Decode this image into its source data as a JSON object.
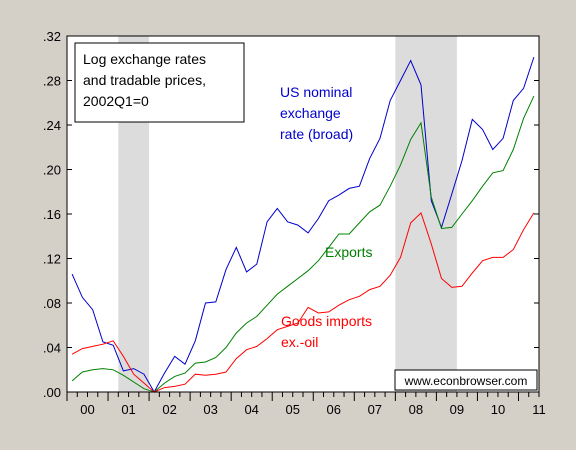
{
  "chart_data": {
    "type": "line",
    "title": "Log exchange rates and tradable prices, 2002Q1=0",
    "title_lines": [
      "Log exchange rates",
      "and tradable prices,",
      "2002Q1=0"
    ],
    "x_start": "2000Q1",
    "x_end": "2011Q1",
    "x_tick_labels": [
      "00",
      "01",
      "02",
      "03",
      "04",
      "05",
      "06",
      "07",
      "08",
      "09",
      "10",
      "11"
    ],
    "y_tick_labels": [
      ".00",
      ".04",
      ".08",
      ".12",
      ".16",
      ".20",
      ".24",
      ".28",
      ".32"
    ],
    "ylim": [
      0,
      0.32
    ],
    "recessions": [
      {
        "start": "2001Q2",
        "end": "2001Q4"
      },
      {
        "start": "2008Q1",
        "end": "2009Q2"
      }
    ],
    "grid": false,
    "legend": "inline labels",
    "series": [
      {
        "name": "US nominal exchange rate (broad)",
        "label_lines": [
          "US nominal",
          "exchange",
          "rate (broad)"
        ],
        "color": "#0000cc",
        "values": [
          0.106,
          0.085,
          0.074,
          0.045,
          0.042,
          0.019,
          0.021,
          0.016,
          0.0,
          0.017,
          0.032,
          0.025,
          0.046,
          0.08,
          0.081,
          0.11,
          0.13,
          0.108,
          0.115,
          0.153,
          0.165,
          0.153,
          0.15,
          0.143,
          0.156,
          0.172,
          0.177,
          0.183,
          0.185,
          0.21,
          0.228,
          0.262,
          0.28,
          0.298,
          0.276,
          0.172,
          0.148,
          0.178,
          0.208,
          0.245,
          0.236,
          0.218,
          0.228,
          0.262,
          0.273,
          0.301
        ]
      },
      {
        "name": "Exports",
        "label_lines": [
          "Exports"
        ],
        "color": "#008000",
        "values": [
          0.01,
          0.018,
          0.02,
          0.021,
          0.02,
          0.015,
          0.009,
          0.003,
          0.0,
          0.008,
          0.014,
          0.017,
          0.026,
          0.027,
          0.031,
          0.04,
          0.053,
          0.062,
          0.068,
          0.078,
          0.088,
          0.095,
          0.102,
          0.109,
          0.118,
          0.13,
          0.142,
          0.142,
          0.152,
          0.162,
          0.168,
          0.185,
          0.204,
          0.227,
          0.242,
          0.175,
          0.147,
          0.148,
          0.16,
          0.172,
          0.185,
          0.197,
          0.199,
          0.218,
          0.246,
          0.266
        ]
      },
      {
        "name": "Goods imports ex.-oil",
        "label_lines": [
          "Goods imports",
          "ex.-oil"
        ],
        "color": "#ff0000",
        "values": [
          0.034,
          0.039,
          0.041,
          0.043,
          0.046,
          0.032,
          0.016,
          0.008,
          0.0,
          0.004,
          0.005,
          0.007,
          0.016,
          0.015,
          0.016,
          0.018,
          0.03,
          0.038,
          0.041,
          0.048,
          0.056,
          0.059,
          0.062,
          0.076,
          0.071,
          0.072,
          0.078,
          0.083,
          0.086,
          0.092,
          0.095,
          0.105,
          0.121,
          0.152,
          0.161,
          0.133,
          0.102,
          0.094,
          0.095,
          0.107,
          0.118,
          0.121,
          0.121,
          0.128,
          0.146,
          0.161
        ]
      }
    ],
    "source": "www.econbrowser.com"
  }
}
